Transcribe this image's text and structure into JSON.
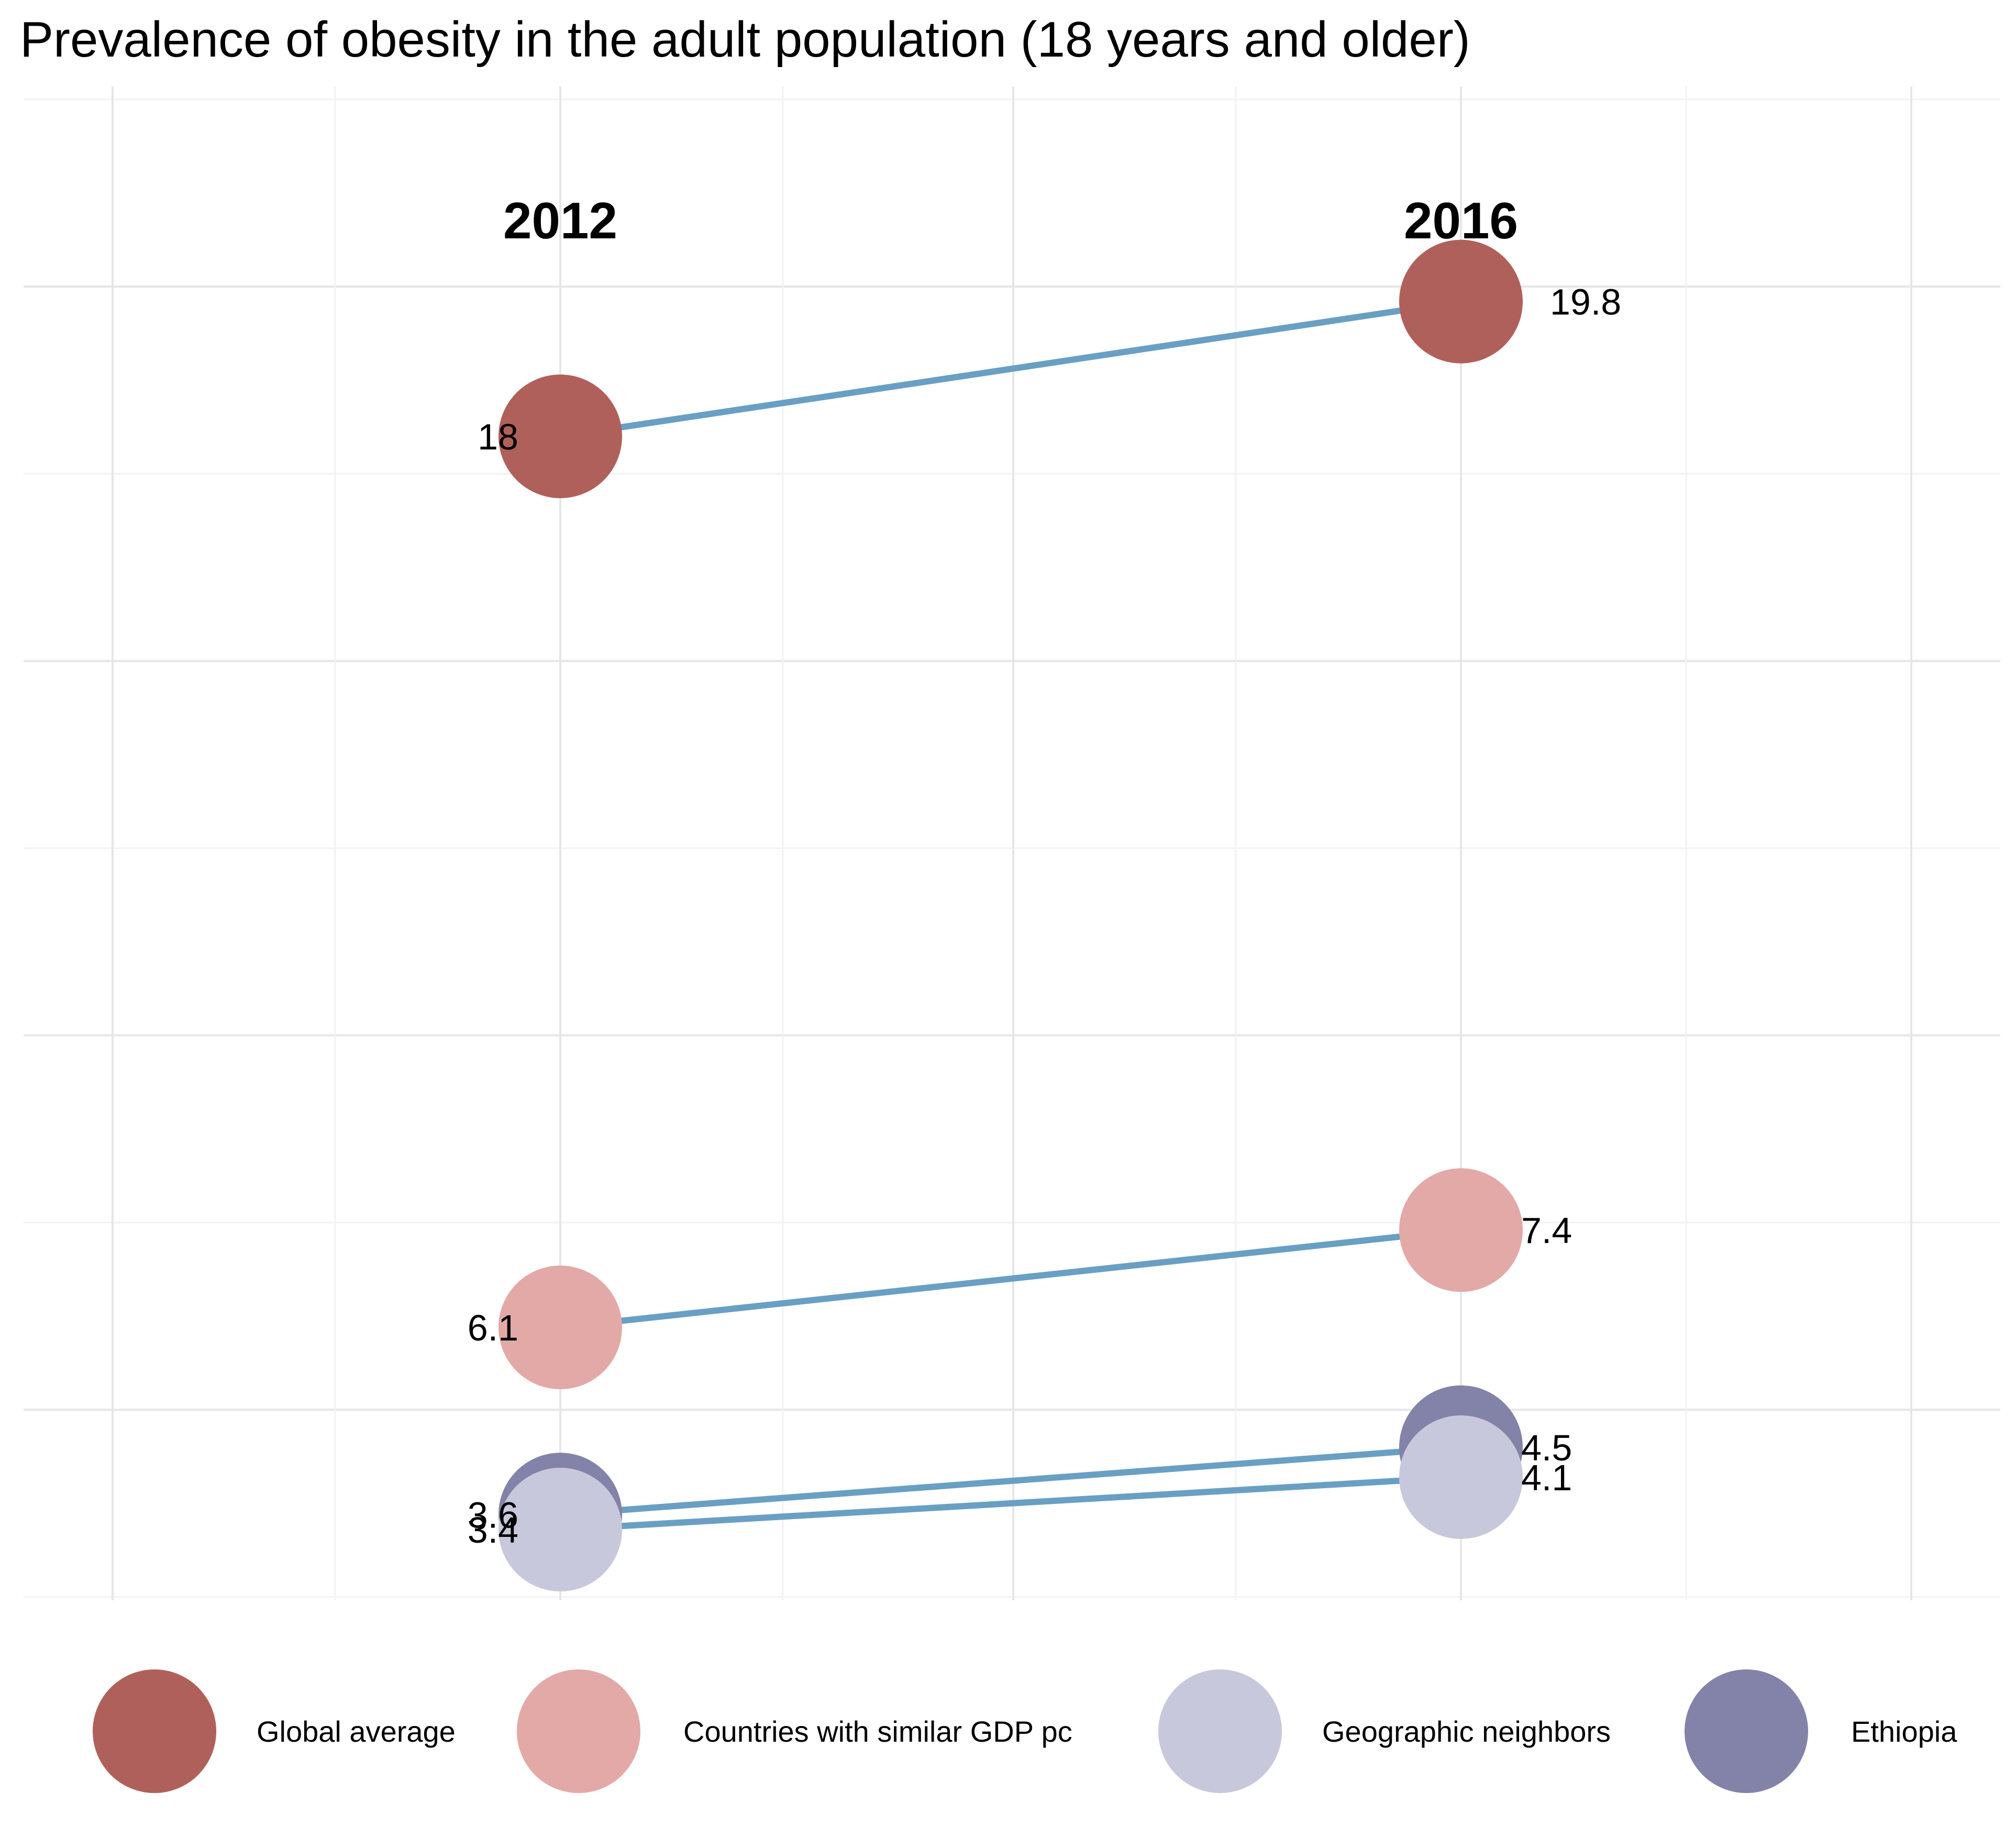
{
  "chart_data": {
    "type": "line",
    "title": "Prevalence of obesity in the adult population (18 years and older)",
    "x": [
      "2012",
      "2016"
    ],
    "series": [
      {
        "name": "Global average",
        "color": "#b0605a",
        "values": [
          18,
          19.8
        ]
      },
      {
        "name": "Countries with similar GDP pc",
        "color": "#e3a9a7",
        "values": [
          6.1,
          7.4
        ]
      },
      {
        "name": "Ethiopia",
        "color": "#8382a8",
        "values": [
          3.6,
          4.5
        ]
      },
      {
        "name": "Geographic neighbors",
        "color": "#c8c8dc",
        "values": [
          3.4,
          4.1
        ]
      }
    ],
    "data_labels": [
      {
        "series": "Global average",
        "values": [
          "18",
          "19.8"
        ]
      },
      {
        "series": "Countries with similar GDP pc",
        "values": [
          "6.1",
          "7.4"
        ]
      },
      {
        "series": "Ethiopia",
        "values": [
          "3.6",
          "4.5"
        ]
      },
      {
        "series": "Geographic neighbors",
        "values": [
          "3.4",
          "4.1"
        ]
      }
    ],
    "legend": {
      "position": "bottom",
      "entries": [
        "Global average",
        "Countries with similar GDP pc",
        "Geographic neighbors",
        "Ethiopia"
      ]
    },
    "line_color": "#6a9fc4",
    "ylim": [
      2.4,
      22.5
    ],
    "grid": true,
    "xlabel": "",
    "ylabel": ""
  }
}
